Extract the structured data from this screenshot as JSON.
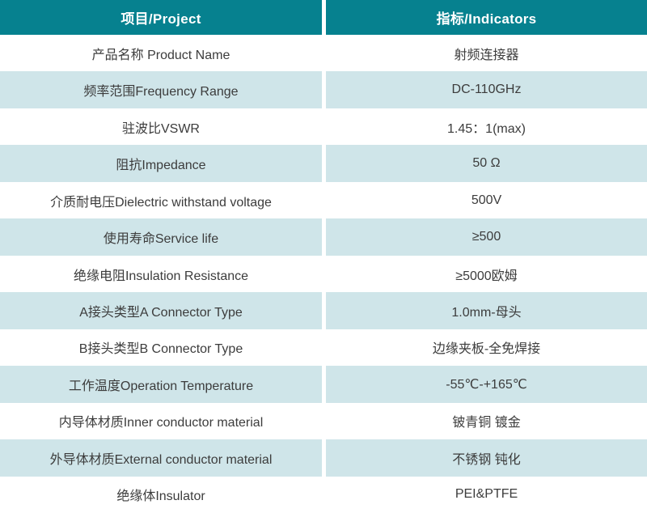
{
  "table": {
    "title": "product-specification-table",
    "columns": [
      {
        "key": "project",
        "label": "项目/Project"
      },
      {
        "key": "indicator",
        "label": "指标/Indicators"
      }
    ],
    "rows": [
      {
        "project": "产品名称 Product Name",
        "indicator": "射频连接器"
      },
      {
        "project": "频率范围Frequency Range",
        "indicator": "DC-110GHz"
      },
      {
        "project": "驻波比VSWR",
        "indicator": "1.45：1(max)"
      },
      {
        "project": "阻抗Impedance",
        "indicator": "50 Ω"
      },
      {
        "project": "介质耐电压Dielectric withstand voltage",
        "indicator": "500V"
      },
      {
        "project": "使用寿命Service life",
        "indicator": "≥500"
      },
      {
        "project": "绝缘电阻Insulation Resistance",
        "indicator": "≥5000欧姆"
      },
      {
        "project": "A接头类型A Connector Type",
        "indicator": "1.0mm-母头"
      },
      {
        "project": "B接头类型B Connector Type",
        "indicator": "边缘夹板-全免焊接"
      },
      {
        "project": "工作温度Operation Temperature",
        "indicator": "-55℃-+165℃"
      },
      {
        "project": "内导体材质Inner conductor material",
        "indicator": "铍青铜 镀金"
      },
      {
        "project": "外导体材质External conductor material",
        "indicator": "不锈钢 钝化"
      },
      {
        "project": "绝缘体Insulator",
        "indicator": "PEI&PTFE"
      }
    ],
    "colors": {
      "header_bg": "#06818f",
      "header_text": "#ffffff",
      "row_alt_bg": "#cfe5e9",
      "row_bg": "#ffffff",
      "text": "#3c3c3c"
    }
  }
}
